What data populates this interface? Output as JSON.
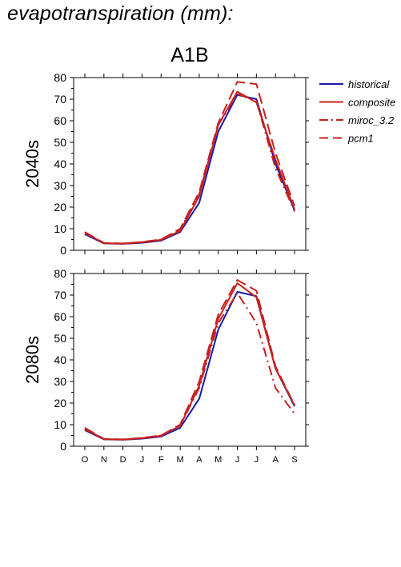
{
  "page": {
    "title": "evapotranspiration (mm):",
    "scenario": "A1B"
  },
  "legend": {
    "position": "right",
    "entries": [
      {
        "label": "historical",
        "color": "#1a1aa6",
        "dash": "solid"
      },
      {
        "label": "composite",
        "color": "#c8201e",
        "dash": "solid"
      },
      {
        "label": "miroc_3.2",
        "color": "#c8201e",
        "dash": "dashdot"
      },
      {
        "label": "pcm1",
        "color": "#c8201e",
        "dash": "dashed"
      }
    ]
  },
  "chart_data": [
    {
      "type": "line",
      "ylabel": "2040s",
      "ylim": [
        0,
        80
      ],
      "yticks": [
        0,
        10,
        20,
        30,
        40,
        50,
        60,
        70,
        80
      ],
      "categories": [
        "O",
        "N",
        "D",
        "J",
        "F",
        "M",
        "A",
        "M",
        "J",
        "J",
        "A",
        "S"
      ],
      "series": [
        {
          "name": "historical",
          "color": "#1a1aa6",
          "dash": "solid",
          "values": [
            7.5,
            3.2,
            3.0,
            3.5,
            4.5,
            8.5,
            22,
            55,
            72,
            70,
            40,
            18.5
          ]
        },
        {
          "name": "composite",
          "color": "#c8201e",
          "dash": "solid",
          "values": [
            8.0,
            3.3,
            3.1,
            3.7,
            4.8,
            9.0,
            25,
            58,
            73.5,
            68.5,
            42,
            19
          ]
        },
        {
          "name": "miroc_3.2",
          "color": "#c8201e",
          "dash": "dashdot",
          "values": [
            8.0,
            3.3,
            3.1,
            3.8,
            5.0,
            9.5,
            26,
            58,
            72.5,
            69,
            38,
            18
          ]
        },
        {
          "name": "pcm1",
          "color": "#c8201e",
          "dash": "dashed",
          "values": [
            8.5,
            3.4,
            3.2,
            3.9,
            5.0,
            10,
            27,
            59,
            78,
            77,
            45,
            20.5
          ]
        }
      ]
    },
    {
      "type": "line",
      "ylabel": "2080s",
      "ylim": [
        0,
        80
      ],
      "yticks": [
        0,
        10,
        20,
        30,
        40,
        50,
        60,
        70,
        80
      ],
      "categories": [
        "O",
        "N",
        "D",
        "J",
        "F",
        "M",
        "A",
        "M",
        "J",
        "J",
        "A",
        "S"
      ],
      "series": [
        {
          "name": "historical",
          "color": "#1a1aa6",
          "dash": "solid",
          "values": [
            7.5,
            3.2,
            3.0,
            3.5,
            4.5,
            8.5,
            22,
            54,
            71.5,
            69.5,
            36,
            18.5
          ]
        },
        {
          "name": "composite",
          "color": "#c8201e",
          "dash": "solid",
          "values": [
            8.0,
            3.3,
            3.1,
            3.7,
            4.8,
            9.5,
            28,
            59,
            75.5,
            69,
            36,
            19
          ]
        },
        {
          "name": "miroc_3.2",
          "color": "#c8201e",
          "dash": "dashdot",
          "values": [
            8.0,
            3.3,
            3.1,
            3.8,
            5.0,
            9.5,
            27,
            57,
            71,
            57,
            27,
            15
          ]
        },
        {
          "name": "pcm1",
          "color": "#c8201e",
          "dash": "dashed",
          "values": [
            8.5,
            3.4,
            3.2,
            3.9,
            5.0,
            10,
            30,
            61,
            77,
            72,
            37,
            19
          ]
        }
      ]
    }
  ]
}
